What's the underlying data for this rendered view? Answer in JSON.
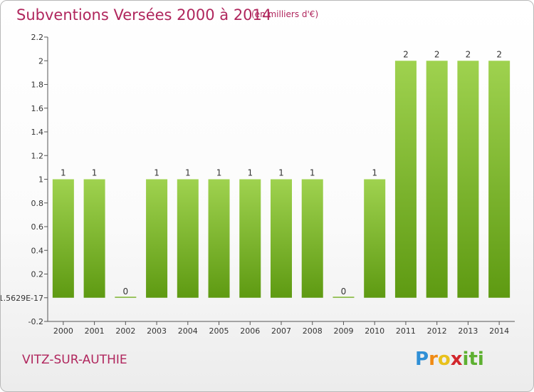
{
  "header": {
    "title": "Subventions Versées 2000 à 2014",
    "subtitle": "(en milliers d'€)"
  },
  "footer": {
    "commune": "VITZ-SUR-AUTHIE",
    "logo_text": "Proxiti"
  },
  "colors": {
    "title": "#b0265d",
    "bar_light": "#9fd24f",
    "bar_dark": "#5e9a12",
    "axis": "#555555"
  },
  "chart_data": {
    "type": "bar",
    "title": "Subventions Versées 2000 à 2014",
    "subtitle": "(en milliers d'€)",
    "xlabel": "",
    "ylabel": "",
    "categories": [
      "2000",
      "2001",
      "2002",
      "2003",
      "2004",
      "2005",
      "2006",
      "2007",
      "2008",
      "2009",
      "2010",
      "2011",
      "2012",
      "2013",
      "2014"
    ],
    "values": [
      1,
      1,
      0,
      1,
      1,
      1,
      1,
      1,
      1,
      0,
      1,
      2,
      2,
      2,
      2
    ],
    "data_labels": [
      "1",
      "1",
      "0",
      "1",
      "1",
      "1",
      "1",
      "1",
      "1",
      "0",
      "1",
      "2",
      "2",
      "2",
      "2"
    ],
    "ylim": [
      -0.2,
      2.2
    ],
    "y_ticks": [
      {
        "value": 2.2,
        "label": "2.2"
      },
      {
        "value": 2.0,
        "label": "2"
      },
      {
        "value": 1.8,
        "label": "1.8"
      },
      {
        "value": 1.6,
        "label": "1.6"
      },
      {
        "value": 1.4,
        "label": "1.4"
      },
      {
        "value": 1.2,
        "label": "1.2"
      },
      {
        "value": 1.0,
        "label": "1"
      },
      {
        "value": 0.8,
        "label": "0.8"
      },
      {
        "value": 0.6,
        "label": "0.6"
      },
      {
        "value": 0.4,
        "label": "0.4"
      },
      {
        "value": 0.2,
        "label": "0.2"
      },
      {
        "value": 0.0,
        "label": "-1.5629E-17"
      },
      {
        "value": -0.2,
        "label": "-0.2"
      }
    ],
    "grid": false,
    "legend": "none"
  }
}
